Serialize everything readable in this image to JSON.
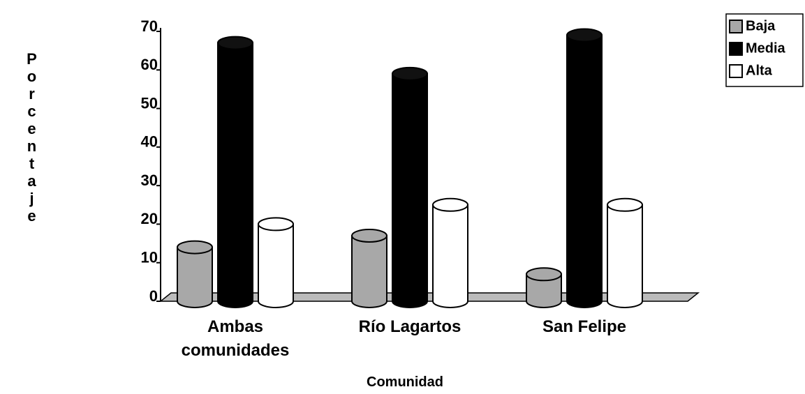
{
  "chart_data": {
    "type": "bar",
    "x_label": "Comunidad",
    "y_label": "Porcentaje",
    "categories": [
      "Ambas comunidades",
      "Río Lagartos",
      "San Felipe"
    ],
    "series": [
      {
        "name": "Baja",
        "color": "#a8a8a8",
        "values": [
          14,
          17,
          7
        ]
      },
      {
        "name": "Media",
        "color": "#000000",
        "values": [
          67,
          59,
          69
        ]
      },
      {
        "name": "Alta",
        "color": "#ffffff",
        "values": [
          20,
          25,
          25
        ]
      }
    ],
    "ylim": [
      0,
      70
    ],
    "yticks": [
      0,
      10,
      20,
      30,
      40,
      50,
      60,
      70
    ],
    "legend": "top-right"
  }
}
